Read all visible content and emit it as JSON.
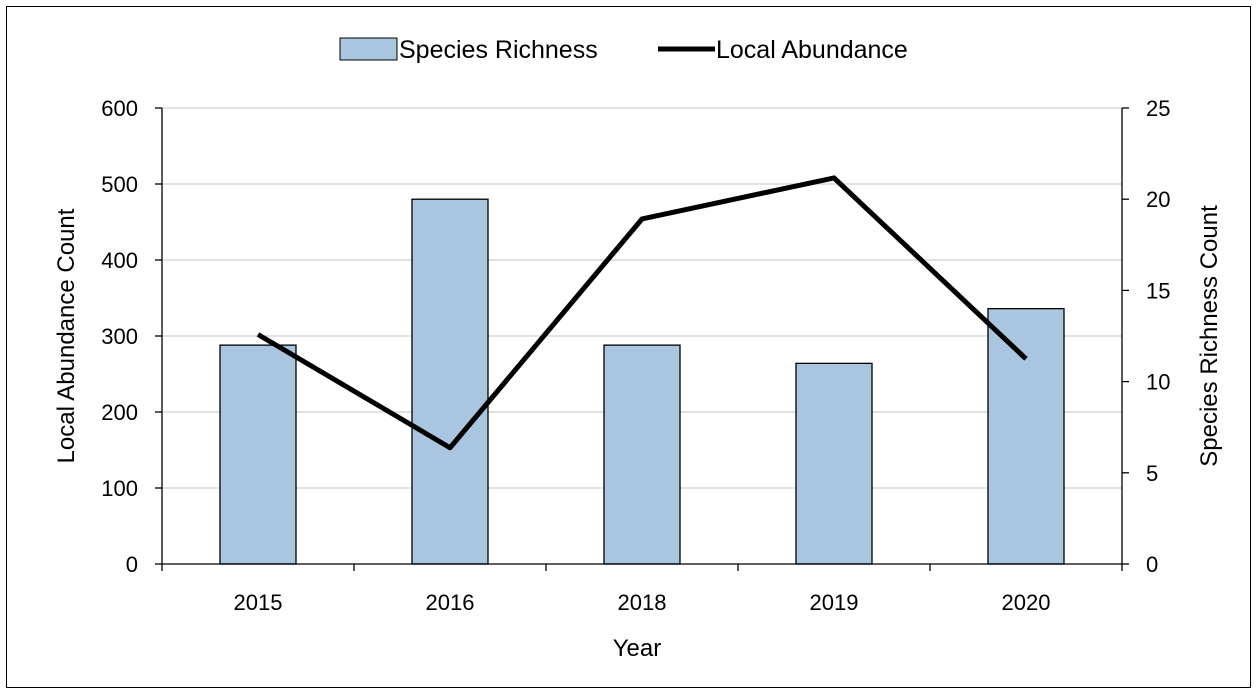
{
  "chart_data": {
    "type": "bar+line",
    "categories": [
      "2015",
      "2016",
      "2018",
      "2019",
      "2020"
    ],
    "series": [
      {
        "name": "Species Richness",
        "type": "bar",
        "axis": "right",
        "values": [
          12,
          20,
          12,
          11,
          14
        ],
        "color": "#a9c5e0"
      },
      {
        "name": "Local Abundance",
        "type": "line",
        "axis": "left",
        "values": [
          302,
          153,
          454,
          508,
          270
        ],
        "color": "#000000"
      }
    ],
    "xlabel": "Year",
    "ylabel_left": "Local Abundance Count",
    "ylabel_right": "Species Richness Count",
    "ylim_left": [
      0,
      600
    ],
    "yticks_left": [
      "0",
      "100",
      "200",
      "300",
      "400",
      "500",
      "600"
    ],
    "ylim_right": [
      0,
      25
    ],
    "yticks_right": [
      "0",
      "5",
      "10",
      "15",
      "20",
      "25"
    ],
    "grid": "horizontal",
    "legend_position": "top"
  }
}
